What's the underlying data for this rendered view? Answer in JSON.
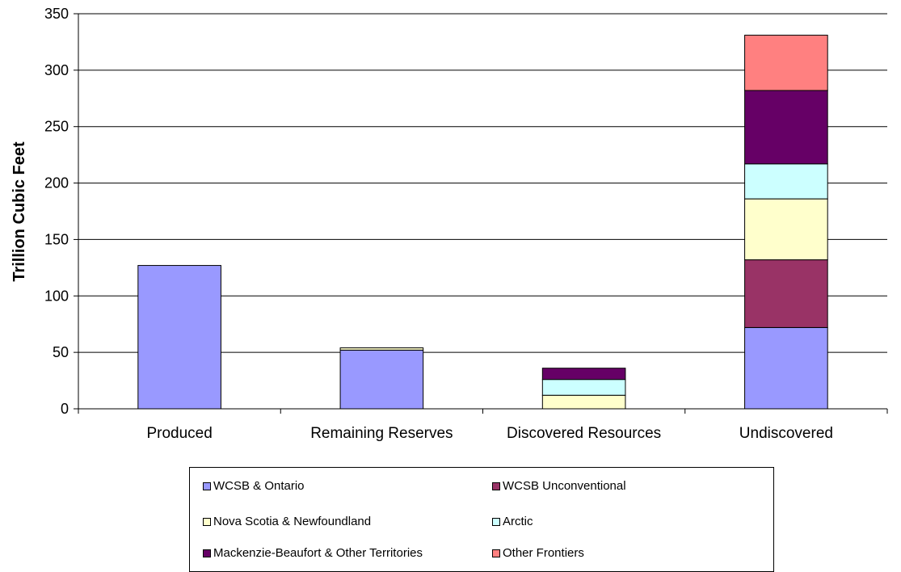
{
  "chart_data": {
    "type": "bar",
    "stacked": true,
    "title": "",
    "xlabel": "",
    "ylabel": "Trillion Cubic Feet",
    "ylim": [
      0,
      350
    ],
    "yticks": [
      0,
      50,
      100,
      150,
      200,
      250,
      300,
      350
    ],
    "grid": true,
    "legend_position": "bottom",
    "categories": [
      "Produced",
      "Remaining Reserves",
      "Discovered Resources",
      "Undiscovered"
    ],
    "series": [
      {
        "name": "WCSB & Ontario",
        "color": "#9999ff",
        "values": [
          127,
          52,
          0,
          72
        ]
      },
      {
        "name": "WCSB Unconventional",
        "color": "#993366",
        "values": [
          0,
          0,
          0,
          60
        ]
      },
      {
        "name": "Nova Scotia & Newfoundland",
        "color": "#ffffcc",
        "values": [
          0,
          2,
          12,
          54
        ]
      },
      {
        "name": "Arctic",
        "color": "#ccffff",
        "values": [
          0,
          0,
          14,
          31
        ]
      },
      {
        "name": "Mackenzie-Beaufort & Other Territories",
        "color": "#660066",
        "values": [
          0,
          0,
          10,
          65
        ]
      },
      {
        "name": "Other Frontiers",
        "color": "#ff8080",
        "values": [
          0,
          0,
          0,
          49
        ]
      }
    ]
  }
}
